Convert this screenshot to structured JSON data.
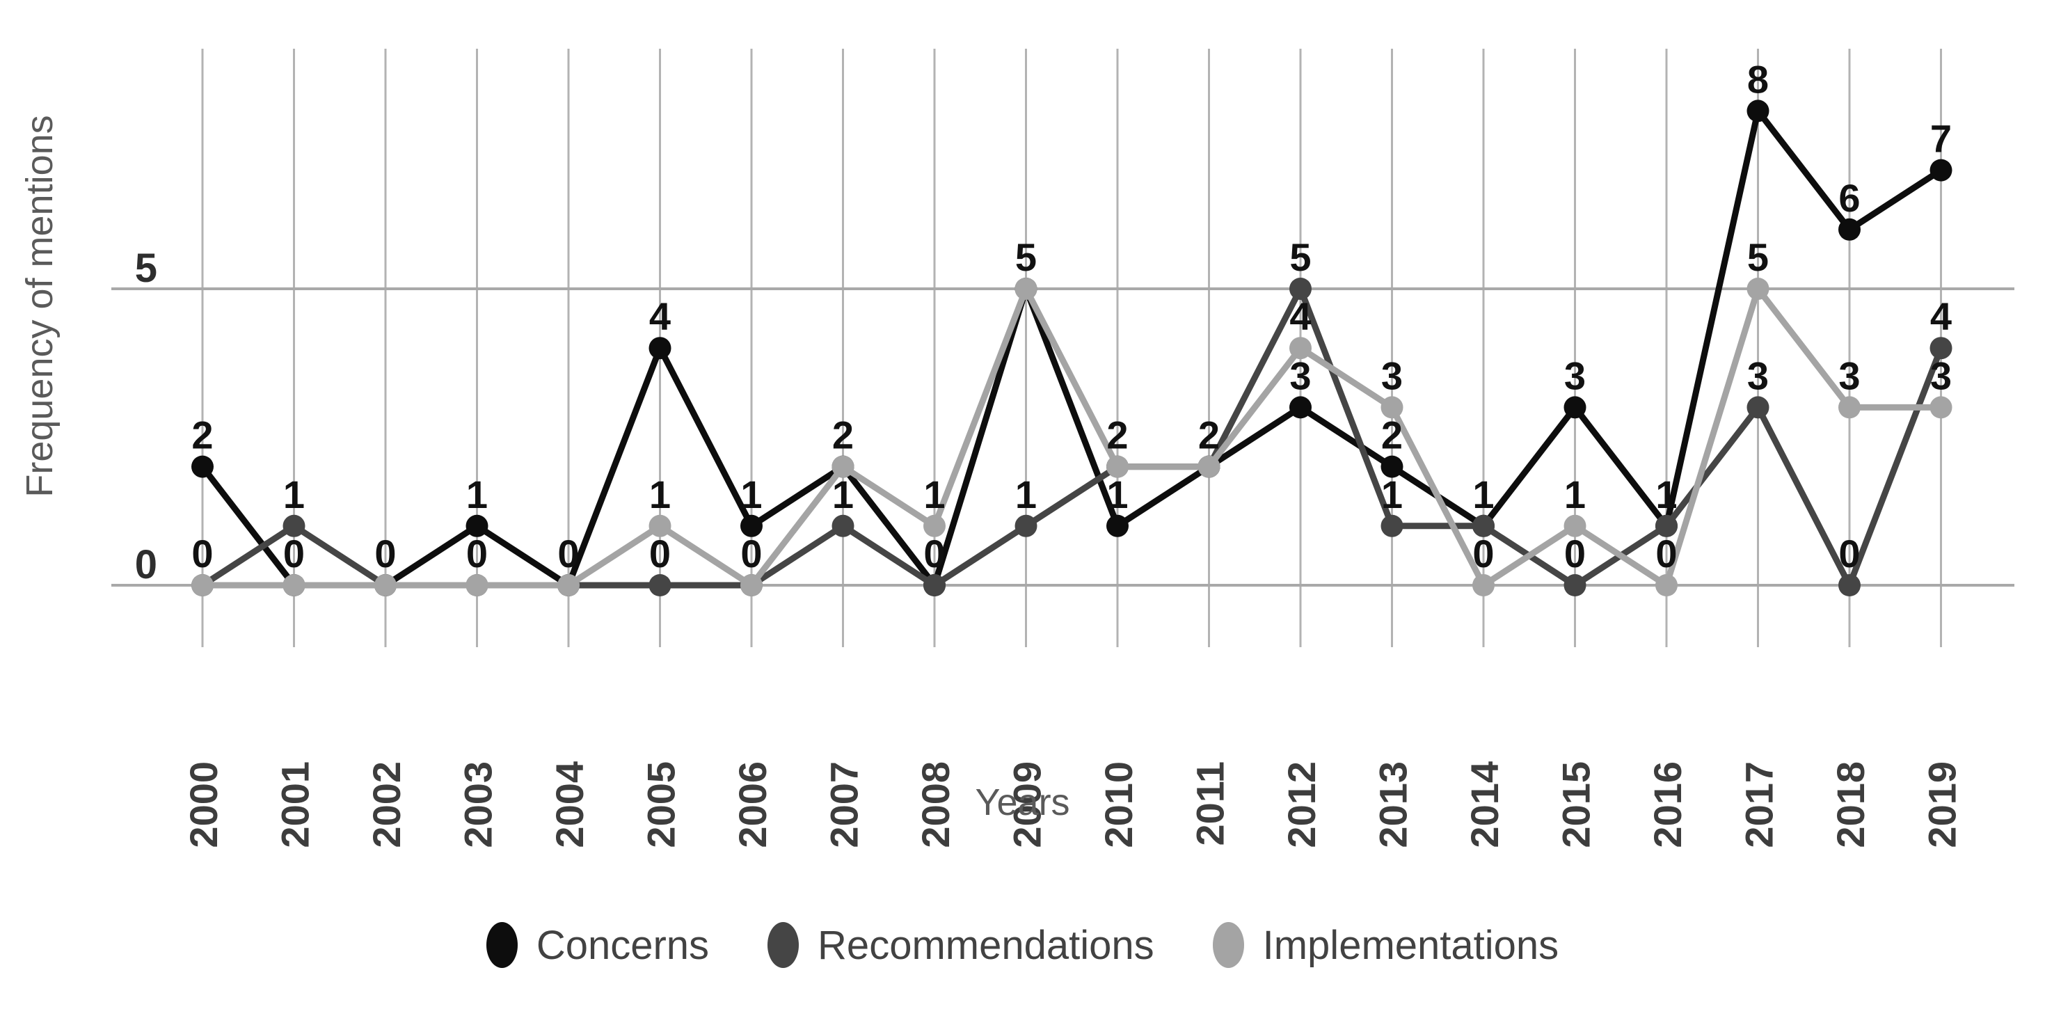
{
  "chart_data": {
    "type": "line",
    "title": "",
    "xlabel": "Years",
    "ylabel": "Frequency of mentions",
    "categories": [
      "2000",
      "2001",
      "2002",
      "2003",
      "2004",
      "2005",
      "2006",
      "2007",
      "2008",
      "2009",
      "2010",
      "2011",
      "2012",
      "2013",
      "2014",
      "2015",
      "2016",
      "2017",
      "2018",
      "2019"
    ],
    "series": [
      {
        "name": "Concerns",
        "color": "#0d0d0d",
        "values": [
          2,
          0,
          0,
          1,
          0,
          4,
          1,
          2,
          0,
          5,
          1,
          2,
          3,
          2,
          1,
          3,
          1,
          8,
          6,
          7
        ]
      },
      {
        "name": "Recommendations",
        "color": "#454545",
        "values": [
          0,
          1,
          0,
          0,
          0,
          0,
          0,
          1,
          0,
          1,
          2,
          2,
          5,
          1,
          1,
          0,
          1,
          3,
          0,
          4
        ]
      },
      {
        "name": "Implementations",
        "color": "#a4a4a4",
        "values": [
          0,
          0,
          0,
          0,
          0,
          1,
          0,
          2,
          1,
          5,
          2,
          2,
          4,
          3,
          0,
          1,
          0,
          5,
          3,
          3
        ]
      }
    ],
    "ylim": [
      0,
      9
    ],
    "yticks": [
      0,
      5
    ],
    "grid": {
      "vertical_per_category": true,
      "horizontal_at": [
        0,
        5
      ]
    },
    "point_labels": true,
    "legend_position": "bottom-center"
  },
  "style": {
    "background": "#ffffff",
    "vertical_grid_color": "#b3b3b3",
    "horizontal_grid_color": "#a9a9a9",
    "y_tick_color": "#2e2e2e",
    "x_tick_color": "#3d3d3d",
    "data_label_color": "#111111",
    "axis_title_color": "#5a5a5a",
    "legend_text_color": "#424242"
  }
}
